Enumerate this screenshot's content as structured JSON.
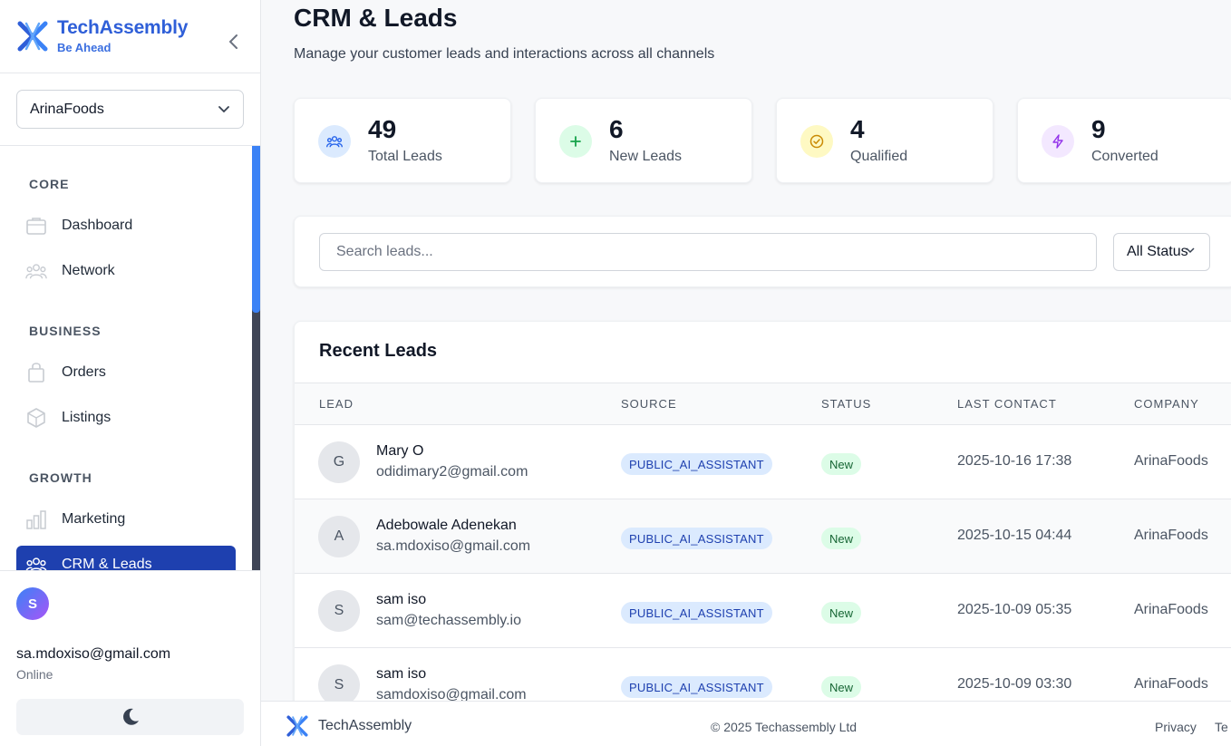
{
  "brand": {
    "name": "TechAssembly",
    "tagline": "Be Ahead",
    "color": "#2f5fd8"
  },
  "org_selector": {
    "value": "ArinaFoods"
  },
  "nav": {
    "sections": [
      {
        "label": "CORE"
      },
      {
        "label": "BUSINESS"
      },
      {
        "label": "GROWTH"
      }
    ],
    "items": [
      {
        "label": "Dashboard",
        "icon": "briefcase-icon"
      },
      {
        "label": "Network",
        "icon": "users-icon"
      },
      {
        "label": "Orders",
        "icon": "shopping-bag-icon"
      },
      {
        "label": "Listings",
        "icon": "cube-icon"
      },
      {
        "label": "Marketing",
        "icon": "bar-chart-icon"
      },
      {
        "label": "CRM & Leads",
        "icon": "users-icon",
        "active": true
      }
    ]
  },
  "user": {
    "initial": "S",
    "email": "sa.mdoxiso@gmail.com",
    "status": "Online",
    "theme_icon": "moon-icon"
  },
  "page": {
    "title": "CRM & Leads",
    "subtitle": "Manage your customer leads and interactions across all channels"
  },
  "stats": [
    {
      "value": "49",
      "label": "Total Leads",
      "icon": "users-icon",
      "bg": "#dbeafe",
      "fg": "#2563eb"
    },
    {
      "value": "6",
      "label": "New Leads",
      "icon": "plus-icon",
      "bg": "#dcfce7",
      "fg": "#16a34a"
    },
    {
      "value": "4",
      "label": "Qualified",
      "icon": "check-circle-icon",
      "bg": "#fef9c3",
      "fg": "#ca8a04"
    },
    {
      "value": "9",
      "label": "Converted",
      "icon": "lightning-icon",
      "bg": "#f3e8ff",
      "fg": "#9333ea"
    }
  ],
  "filters": {
    "search_placeholder": "Search leads...",
    "status_value": "All Status"
  },
  "leads": {
    "title": "Recent Leads",
    "columns": [
      "LEAD",
      "SOURCE",
      "STATUS",
      "LAST CONTACT",
      "COMPANY"
    ],
    "rows": [
      {
        "initial": "G",
        "name": "Mary O",
        "email": "odidimary2@gmail.com",
        "source": "PUBLIC_AI_ASSISTANT",
        "status": "New",
        "last_contact": "2025-10-16 17:38",
        "company": "ArinaFoods"
      },
      {
        "initial": "A",
        "name": "Adebowale Adenekan",
        "email": "sa.mdoxiso@gmail.com",
        "source": "PUBLIC_AI_ASSISTANT",
        "status": "New",
        "last_contact": "2025-10-15 04:44",
        "company": "ArinaFoods"
      },
      {
        "initial": "S",
        "name": "sam iso",
        "email": "sam@techassembly.io",
        "source": "PUBLIC_AI_ASSISTANT",
        "status": "New",
        "last_contact": "2025-10-09 05:35",
        "company": "ArinaFoods"
      },
      {
        "initial": "S",
        "name": "sam iso",
        "email": "samdoxiso@gmail.com",
        "source": "PUBLIC_AI_ASSISTANT",
        "status": "New",
        "last_contact": "2025-10-09 03:30",
        "company": "ArinaFoods"
      }
    ]
  },
  "footer": {
    "brand": "TechAssembly",
    "copyright": "© 2025 Techassembly Ltd",
    "links": [
      "Privacy",
      "Te"
    ]
  }
}
